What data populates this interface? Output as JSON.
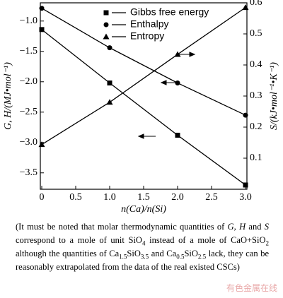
{
  "chart_data": {
    "type": "line",
    "x_label": "n(Ca)/n(Si)",
    "y_label": "G, H/(MJ•mol⁻¹)",
    "y2_label": "S/(kJ•mol⁻¹•K⁻¹)",
    "x": [
      0,
      1,
      2,
      3
    ],
    "series": [
      {
        "name": "Gibbs free energy",
        "color": "#000000",
        "marker": "square",
        "values": [
          -1.14,
          -2.02,
          -2.88,
          -3.7
        ]
      },
      {
        "name": "Enthalpy",
        "color": "#000000",
        "marker": "circle",
        "values": [
          -0.79,
          -1.44,
          -2.02,
          -2.55
        ]
      },
      {
        "name": "Entropy",
        "color": "#000000",
        "marker": "triangle",
        "axis": "y2",
        "values": [
          0.144,
          0.28,
          0.434,
          0.585
        ]
      }
    ],
    "xlim": [
      0,
      3.0
    ],
    "xticks": [
      0,
      0.5,
      {
        "value": 1,
        "label": "1.0"
      },
      1.5,
      {
        "value": 2,
        "label": "2.0"
      },
      2.5,
      {
        "value": 3,
        "label": "3.0"
      }
    ],
    "ylim": [
      -3.77,
      -0.7
    ],
    "yticks": [
      {
        "value": -1,
        "label": "−1.0"
      },
      {
        "value": -1.5,
        "label": "−1.5"
      },
      {
        "value": -2,
        "label": "−2.0"
      },
      {
        "value": -2.5,
        "label": "−2.5"
      },
      {
        "value": -3,
        "label": "−3.0"
      },
      {
        "value": -3.5,
        "label": "−3.5"
      }
    ],
    "y2lim": [
      0,
      0.6
    ],
    "y2ticks": [
      0.1,
      0.2,
      0.3,
      0.4,
      0.5,
      0.6
    ],
    "caption": [
      {
        "text": "(It must be noted that molar thermodynamic quantities of "
      },
      {
        "text": "G, H",
        "style": "italic"
      },
      {
        "text": " and "
      },
      {
        "text": "S",
        "style": "italic"
      },
      {
        "text": " correspond to a mole of unit SiO"
      },
      {
        "text": "4",
        "style": "sub"
      },
      {
        "text": " instead of a mole of CaO+SiO"
      },
      {
        "text": "2",
        "style": "sub"
      },
      {
        "text": " although the quantities of Ca"
      },
      {
        "text": "1.5",
        "style": "sub"
      },
      {
        "text": "SiO"
      },
      {
        "text": "3.5",
        "style": "sub"
      },
      {
        "text": " and Ca"
      },
      {
        "text": "0.5",
        "style": "sub"
      },
      {
        "text": "SiO"
      },
      {
        "text": "2.5",
        "style": "sub"
      },
      {
        "text": " lack, they can be reasonably extrapolated from the data of the real existed CSCs)"
      }
    ],
    "watermark": "有色金属在线"
  }
}
